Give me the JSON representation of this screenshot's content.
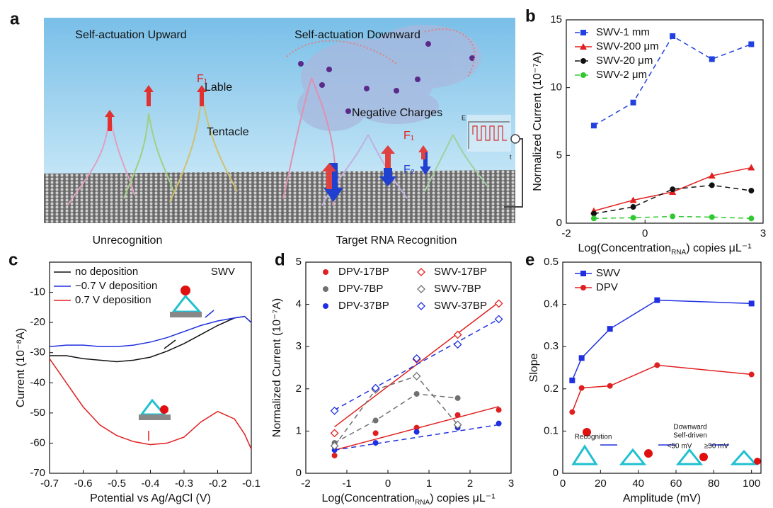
{
  "panel_a": {
    "letter": "a",
    "upward_title": "Self-actuation Upward",
    "downward_title": "Self-actuation Downward",
    "force_label_left": "F₁",
    "lable": "Lable",
    "tentacle": "Tentacle",
    "negative_charges": "Negative Charges",
    "inset_e": "E",
    "inset_t": "t",
    "force_up": "F₁",
    "force_down": "F₂",
    "caption_left": "Unrecognition",
    "caption_right": "Target RNA Recognition"
  },
  "chart_data": [
    {
      "type": "line",
      "letter": "b",
      "x": [
        -1.3,
        -0.3,
        0.7,
        1.7,
        2.7
      ],
      "xlim": [
        -2,
        3
      ],
      "xticks": [
        -2,
        0,
        3
      ],
      "ylim": [
        0,
        15
      ],
      "yticks": [
        0,
        5,
        10,
        15
      ],
      "x_label": [
        "Log(Concentration",
        "RNA",
        ") copies μL⁻¹"
      ],
      "y_label": "Normalized Current (10⁻⁷A)",
      "legend": "upper left",
      "series": [
        {
          "name": "SWV-1 mm",
          "color": "#2040e0",
          "marker": "square",
          "style": "dashed",
          "values": [
            7.2,
            8.9,
            13.8,
            12.1,
            13.2
          ]
        },
        {
          "name": "SWV-200 μm",
          "color": "#e02020",
          "marker": "triangle",
          "style": "solid",
          "values": [
            0.9,
            1.7,
            2.3,
            3.5,
            4.1
          ]
        },
        {
          "name": "SWV-20 μm",
          "color": "#111111",
          "marker": "circle",
          "style": "dashed",
          "values": [
            0.7,
            1.2,
            2.5,
            2.8,
            2.4
          ]
        },
        {
          "name": "SWV-2 μm",
          "color": "#30c830",
          "marker": "circle",
          "style": "dashed",
          "values": [
            0.35,
            0.4,
            0.5,
            0.45,
            0.35
          ]
        }
      ]
    },
    {
      "type": "line",
      "letter": "c",
      "x": [
        -0.7,
        -0.65,
        -0.6,
        -0.55,
        -0.5,
        -0.45,
        -0.4,
        -0.35,
        -0.3,
        -0.25,
        -0.2,
        -0.15,
        -0.12,
        -0.1
      ],
      "xlim": [
        -0.7,
        -0.1
      ],
      "xticks": [
        -0.7,
        -0.6,
        -0.5,
        -0.4,
        -0.3,
        -0.2,
        -0.1
      ],
      "ylim": [
        -70,
        0
      ],
      "yticks": [
        -70,
        -60,
        -50,
        -40,
        -30,
        -20,
        -10
      ],
      "x_label": [
        "Potential vs Ag/AgCl (V)"
      ],
      "y_label": "Current (10⁻⁸A)",
      "legend": "upper left",
      "annotations": [
        "SWV"
      ],
      "series": [
        {
          "name": "no deposition",
          "color": "#111111",
          "style": "solid",
          "values": [
            -31,
            -31,
            -32,
            -32.5,
            -33,
            -32.5,
            -31.5,
            -29.5,
            -27,
            -24,
            -21,
            -18.5,
            -18,
            -20
          ]
        },
        {
          "name": "−0.7 V deposition",
          "color": "#2030e0",
          "style": "solid",
          "values": [
            -28,
            -27.5,
            -27.5,
            -28,
            -28,
            -27.5,
            -26.5,
            -25,
            -23,
            -21,
            -19.5,
            -18.5,
            -18,
            -20
          ]
        },
        {
          "name": "0.7 V deposition",
          "color": "#e02020",
          "style": "solid",
          "values": [
            -32,
            -40,
            -48,
            -54,
            -57.5,
            -59.5,
            -60.5,
            -60,
            -58,
            -53,
            -49.5,
            -52,
            -57,
            -62
          ]
        }
      ]
    },
    {
      "type": "scatter",
      "letter": "d",
      "x": [
        -1.3,
        -0.3,
        0.7,
        1.7,
        2.7
      ],
      "xlim": [
        -2,
        3
      ],
      "xticks": [
        -2,
        -1,
        0,
        1,
        2,
        3
      ],
      "ylim": [
        0,
        5
      ],
      "yticks": [
        0,
        1,
        2,
        3,
        4,
        5
      ],
      "x_label": [
        "Log(Concentration",
        "RNA",
        ") copies μL⁻¹"
      ],
      "y_label": "Normalized Current (10⁻⁷A)",
      "legend": "upper left",
      "series": [
        {
          "name": "DPV-17BP",
          "color": "#e02020",
          "marker": "circle",
          "style": "solid",
          "fit": [
            0.55,
            1.58
          ],
          "values": [
            0.42,
            0.95,
            1.08,
            1.38,
            1.5
          ]
        },
        {
          "name": "DPV-7BP",
          "color": "#707070",
          "marker": "circle",
          "style": "dashed",
          "values": [
            0.72,
            1.25,
            1.88,
            1.78,
            null
          ]
        },
        {
          "name": "DPV-37BP",
          "color": "#2030e0",
          "marker": "circle",
          "style": "dashed",
          "fit": [
            0.55,
            1.15
          ],
          "values": [
            0.55,
            0.72,
            0.98,
            1.08,
            1.18
          ]
        },
        {
          "name": "SWV-17BP",
          "color": "#e02020",
          "marker": "diamond",
          "style": "solid",
          "fit": [
            1.1,
            4.05
          ],
          "values": [
            0.95,
            2.0,
            2.7,
            3.28,
            4.02
          ]
        },
        {
          "name": "SWV-7BP",
          "color": "#707070",
          "marker": "diamond",
          "style": "dashed",
          "values": [
            0.65,
            1.98,
            2.3,
            1.15,
            null
          ]
        },
        {
          "name": "SWV-37BP",
          "color": "#2030e0",
          "marker": "diamond",
          "style": "dashed",
          "fit": [
            1.5,
            3.65
          ],
          "values": [
            1.48,
            2.02,
            2.72,
            3.05,
            3.65
          ]
        }
      ]
    },
    {
      "type": "line",
      "letter": "e",
      "x": [
        5,
        10,
        25,
        50,
        100
      ],
      "xlim": [
        0,
        105
      ],
      "xticks": [
        0,
        20,
        40,
        60,
        80,
        100
      ],
      "ylim": [
        0,
        0.5
      ],
      "yticks": [
        0,
        0.1,
        0.2,
        0.3,
        0.4,
        0.5
      ],
      "x_label": [
        "Amplitude (mV)"
      ],
      "y_label": "Slope",
      "legend": "upper left",
      "annotations": [
        "Recognition",
        "Downward",
        "Self-driven",
        "<50 mV",
        "≥50 mV"
      ],
      "series": [
        {
          "name": "SWV",
          "color": "#2030e0",
          "marker": "square",
          "style": "solid",
          "values": [
            0.22,
            0.273,
            0.342,
            0.41,
            0.402
          ]
        },
        {
          "name": "DPV",
          "color": "#e02020",
          "marker": "circle",
          "style": "solid",
          "values": [
            0.145,
            0.202,
            0.207,
            0.256,
            0.234
          ]
        }
      ]
    }
  ]
}
